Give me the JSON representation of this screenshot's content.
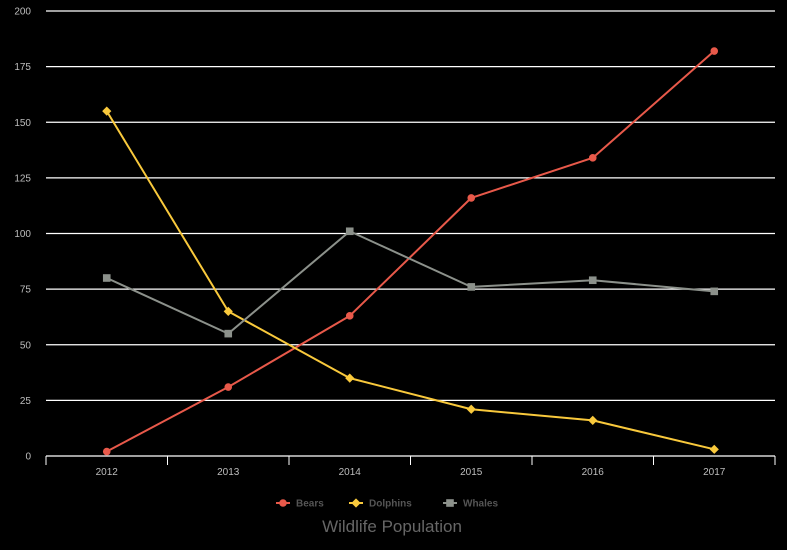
{
  "chart_data": {
    "type": "line",
    "title": "Wildlife Population",
    "categories": [
      "2012",
      "2013",
      "2014",
      "2015",
      "2016",
      "2017"
    ],
    "ylim": [
      0,
      200
    ],
    "yticks": [
      0,
      25,
      50,
      75,
      100,
      125,
      150,
      175,
      200
    ],
    "grid": true,
    "legend_position": "bottom",
    "series": [
      {
        "name": "Bears",
        "color": "#e8594a",
        "marker": "circle",
        "values": [
          2,
          31,
          63,
          116,
          134,
          182
        ]
      },
      {
        "name": "Dolphins",
        "color": "#f9c93c",
        "marker": "diamond",
        "values": [
          155,
          65,
          35,
          21,
          16,
          3
        ]
      },
      {
        "name": "Whales",
        "color": "#8c918b",
        "marker": "square",
        "values": [
          80,
          55,
          101,
          76,
          79,
          74
        ]
      }
    ]
  }
}
